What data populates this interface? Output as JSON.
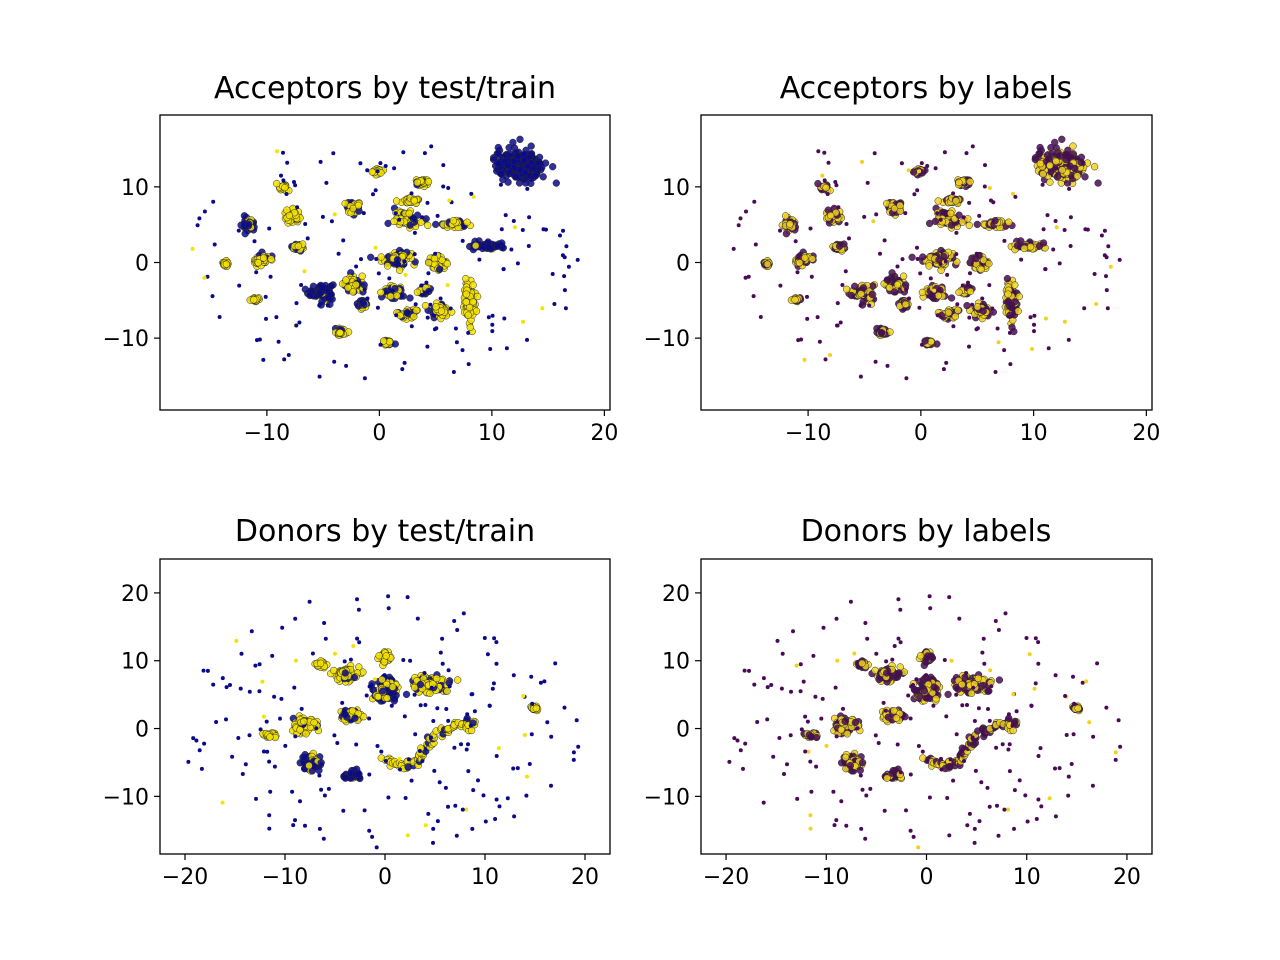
{
  "figure": {
    "colors": {
      "train": "#0a0a8c",
      "test": "#f5e200",
      "label_negative": "#4b0a57",
      "label_positive": "#f2d21e",
      "edge": "#2a2a2a"
    }
  },
  "chart_data": [
    {
      "type": "scatter",
      "title": "Acceptors by test/train",
      "xlabel": "",
      "ylabel": "",
      "xlim": [
        -19.5,
        20.5
      ],
      "ylim": [
        -19.5,
        19.5
      ],
      "x_ticks": [
        -10,
        0,
        10,
        20
      ],
      "x_tick_labels": [
        "−10",
        "0",
        "10",
        "20"
      ],
      "y_ticks": [
        -10,
        0,
        10
      ],
      "y_tick_labels": [
        "−10",
        "0",
        "10"
      ],
      "color_by": "test/train",
      "clusters": [
        {
          "x": -5.2,
          "y": -3.9,
          "rx": 1.1,
          "ry": 1.2,
          "mix": 0.15
        },
        {
          "x": 1.5,
          "y": 0.5,
          "rx": 1.3,
          "ry": 1.0,
          "mix": 0.6
        },
        {
          "x": 5.2,
          "y": 0.0,
          "rx": 0.8,
          "ry": 0.8,
          "mix": 0.8
        },
        {
          "x": -2.3,
          "y": 7.2,
          "rx": 0.8,
          "ry": 0.8,
          "mix": 0.7
        },
        {
          "x": -2.3,
          "y": -3.0,
          "rx": 0.9,
          "ry": 1.1,
          "mix": 0.6
        },
        {
          "x": 2.5,
          "y": 5.8,
          "rx": 1.2,
          "ry": 1.0,
          "mix": 0.75
        },
        {
          "x": -7.8,
          "y": 6.0,
          "rx": 0.7,
          "ry": 0.9,
          "mix": 0.8
        },
        {
          "x": -7.2,
          "y": 2.0,
          "rx": 0.6,
          "ry": 0.5,
          "mix": 0.8
        },
        {
          "x": -10.5,
          "y": 0.4,
          "rx": 0.7,
          "ry": 0.8,
          "mix": 0.8
        },
        {
          "x": 2.5,
          "y": -6.8,
          "rx": 0.9,
          "ry": 0.7,
          "mix": 0.8
        },
        {
          "x": 5.4,
          "y": -6.3,
          "rx": 0.9,
          "ry": 0.9,
          "mix": 0.75
        },
        {
          "x": 12.5,
          "y": 12.8,
          "rx": 2.2,
          "ry": 2.2,
          "mix": 0.0
        },
        {
          "x": 3.8,
          "y": 10.5,
          "rx": 0.6,
          "ry": 0.5,
          "mix": 0.8
        },
        {
          "x": 2.8,
          "y": 8.2,
          "rx": 0.8,
          "ry": 0.4,
          "mix": 0.8
        },
        {
          "x": -8.5,
          "y": 9.9,
          "rx": 0.4,
          "ry": 0.4,
          "mix": 0.8
        },
        {
          "x": -11.6,
          "y": 5.0,
          "rx": 0.5,
          "ry": 0.8,
          "mix": 0.2
        },
        {
          "x": -3.4,
          "y": -9.2,
          "rx": 0.5,
          "ry": 0.5,
          "mix": 0.7
        },
        {
          "x": -1.5,
          "y": -5.5,
          "rx": 0.5,
          "ry": 0.6,
          "mix": 0.4
        },
        {
          "x": 1.2,
          "y": -4.0,
          "rx": 0.9,
          "ry": 0.8,
          "mix": 0.5
        },
        {
          "x": 9.7,
          "y": 2.2,
          "rx": 1.4,
          "ry": 0.5,
          "mix": 0.1
        },
        {
          "x": 8.0,
          "y": -5.0,
          "rx": 0.6,
          "ry": 3.0,
          "mix": 1.0
        },
        {
          "x": -0.1,
          "y": 12.0,
          "rx": 0.5,
          "ry": 0.4,
          "mix": 1.0
        },
        {
          "x": 6.6,
          "y": 5.1,
          "rx": 1.4,
          "ry": 0.4,
          "mix": 0.6
        },
        {
          "x": -13.7,
          "y": -0.2,
          "rx": 0.3,
          "ry": 0.4,
          "mix": 1.0
        },
        {
          "x": -11.0,
          "y": -4.9,
          "rx": 0.4,
          "ry": 0.3,
          "mix": 1.0
        },
        {
          "x": 0.7,
          "y": -10.5,
          "rx": 0.4,
          "ry": 0.4,
          "mix": 0.6
        },
        {
          "x": 4.0,
          "y": -3.8,
          "rx": 0.5,
          "ry": 0.5,
          "mix": 0.3
        }
      ],
      "scattered_points": 160
    },
    {
      "type": "scatter",
      "title": "Acceptors by labels",
      "xlabel": "",
      "ylabel": "",
      "xlim": [
        -19.5,
        20.5
      ],
      "ylim": [
        -19.5,
        19.5
      ],
      "x_ticks": [
        -10,
        0,
        10,
        20
      ],
      "x_tick_labels": [
        "−10",
        "0",
        "10",
        "20"
      ],
      "y_ticks": [
        -10,
        0,
        10
      ],
      "y_tick_labels": [
        "−10",
        "0",
        "10"
      ],
      "color_by": "labels",
      "clusters_from_panel": 0,
      "positive_fraction": 0.55
    },
    {
      "type": "scatter",
      "title": "Donors by test/train",
      "xlabel": "",
      "ylabel": "",
      "xlim": [
        -22.5,
        22.5
      ],
      "ylim": [
        -18.5,
        25
      ],
      "x_ticks": [
        -20,
        -10,
        0,
        10,
        20
      ],
      "x_tick_labels": [
        "−20",
        "−10",
        "0",
        "10",
        "20"
      ],
      "y_ticks": [
        -10,
        0,
        10,
        20
      ],
      "y_tick_labels": [
        "−10",
        "0",
        "10",
        "20"
      ],
      "color_by": "test/train",
      "clusters": [
        {
          "x": -4.0,
          "y": 8.0,
          "rx": 1.3,
          "ry": 1.0,
          "mix": 0.8
        },
        {
          "x": 0.0,
          "y": 5.5,
          "rx": 1.1,
          "ry": 1.8,
          "mix": 0.3
        },
        {
          "x": 4.5,
          "y": 6.5,
          "rx": 1.8,
          "ry": 1.3,
          "mix": 0.85
        },
        {
          "x": -8.0,
          "y": 0.5,
          "rx": 1.1,
          "ry": 1.3,
          "mix": 0.8
        },
        {
          "x": -3.5,
          "y": 2.0,
          "rx": 1.0,
          "ry": 0.8,
          "mix": 0.8
        },
        {
          "x": -7.5,
          "y": -5.0,
          "rx": 0.8,
          "ry": 1.2,
          "mix": 0.2
        },
        {
          "x": -3.2,
          "y": -6.8,
          "rx": 0.9,
          "ry": 0.6,
          "mix": 0.2
        },
        {
          "x": 0.0,
          "y": 10.5,
          "rx": 0.6,
          "ry": 0.8,
          "mix": 1.0
        },
        {
          "x": -11.5,
          "y": -1.0,
          "rx": 0.6,
          "ry": 0.4,
          "mix": 1.0
        },
        {
          "x": -6.5,
          "y": 9.5,
          "rx": 0.5,
          "ry": 0.5,
          "mix": 1.0
        },
        {
          "x": 15.0,
          "y": 3.0,
          "rx": 0.3,
          "ry": 0.3,
          "mix": 1.0
        }
      ],
      "curve": {
        "x": [
          0,
          1.5,
          3,
          4,
          5,
          6.5,
          8,
          9
        ],
        "y": [
          -4.5,
          -5.5,
          -5,
          -3,
          -1,
          0,
          0.5,
          0.3
        ],
        "mix": 0.85
      },
      "scattered_points": 200
    },
    {
      "type": "scatter",
      "title": "Donors by labels",
      "xlabel": "",
      "ylabel": "",
      "xlim": [
        -22.5,
        22.5
      ],
      "ylim": [
        -18.5,
        25
      ],
      "x_ticks": [
        -20,
        -10,
        0,
        10,
        20
      ],
      "x_tick_labels": [
        "−20",
        "−10",
        "0",
        "10",
        "20"
      ],
      "y_ticks": [
        -10,
        0,
        10,
        20
      ],
      "y_tick_labels": [
        "−10",
        "0",
        "10",
        "20"
      ],
      "color_by": "labels",
      "clusters_from_panel": 2,
      "positive_fraction": 0.5
    }
  ]
}
